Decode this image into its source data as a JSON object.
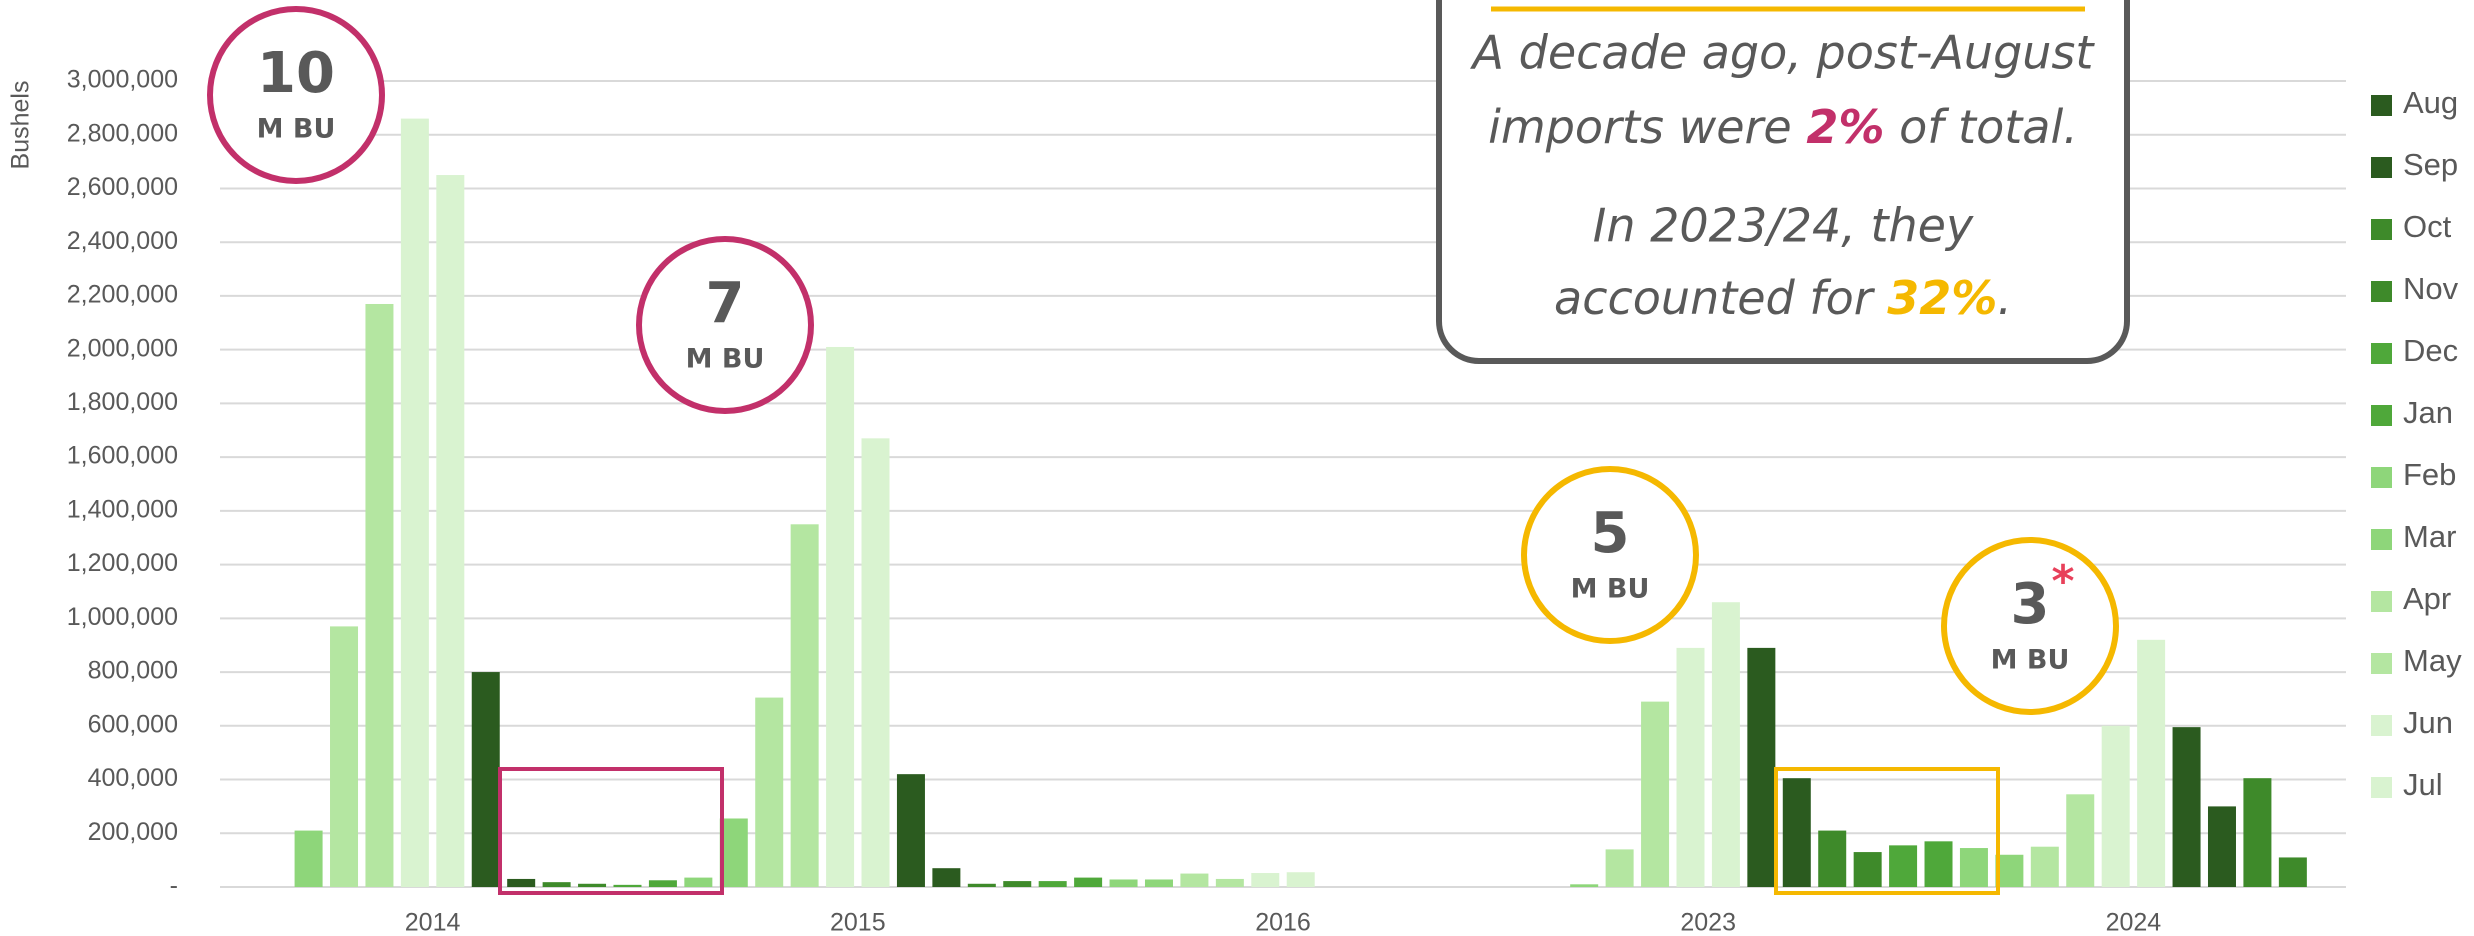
{
  "chart_data": {
    "type": "bar",
    "y_axis_label": "Bushels",
    "categories": [
      "2014",
      "2015",
      "2016",
      "2023",
      "2024"
    ],
    "ylim": [
      0,
      3000000
    ],
    "yticks": [
      {
        "value": 0,
        "label": "-"
      },
      {
        "value": 200000,
        "label": "200,000"
      },
      {
        "value": 400000,
        "label": "400,000"
      },
      {
        "value": 600000,
        "label": "600,000"
      },
      {
        "value": 800000,
        "label": "800,000"
      },
      {
        "value": 1000000,
        "label": "1,000,000"
      },
      {
        "value": 1200000,
        "label": "1,200,000"
      },
      {
        "value": 1400000,
        "label": "1,400,000"
      },
      {
        "value": 1600000,
        "label": "1,600,000"
      },
      {
        "value": 1800000,
        "label": "1,800,000"
      },
      {
        "value": 2000000,
        "label": "2,000,000"
      },
      {
        "value": 2200000,
        "label": "2,200,000"
      },
      {
        "value": 2400000,
        "label": "2,400,000"
      },
      {
        "value": 2600000,
        "label": "2,600,000"
      },
      {
        "value": 2800000,
        "label": "2,800,000"
      },
      {
        "value": 3000000,
        "label": "3,000,000"
      }
    ],
    "grid": true,
    "legend": "right",
    "series": [
      {
        "name": "Aug",
        "color": "#2b5b1f",
        "values": [
          800000,
          420000,
          null,
          890000,
          595000
        ]
      },
      {
        "name": "Sep",
        "color": "#2b5b1f",
        "values": [
          30000,
          70000,
          null,
          405000,
          300000
        ]
      },
      {
        "name": "Oct",
        "color": "#3e8a2a",
        "values": [
          18000,
          12000,
          null,
          210000,
          405000
        ]
      },
      {
        "name": "Nov",
        "color": "#3e8a2a",
        "values": [
          12000,
          22000,
          null,
          130000,
          110000
        ]
      },
      {
        "name": "Dec",
        "color": "#4fa83a",
        "values": [
          8000,
          22000,
          null,
          155000,
          null
        ]
      },
      {
        "name": "Jan",
        "color": "#4fa83a",
        "values": [
          null,
          25000,
          35000,
          null,
          170000
        ]
      },
      {
        "name": "Feb",
        "color": "#8ed67a",
        "values": [
          null,
          35000,
          28000,
          null,
          145000
        ]
      },
      {
        "name": "Mar",
        "color": "#8ed67a",
        "values": [
          210000,
          255000,
          28000,
          10000,
          120000
        ]
      },
      {
        "name": "Apr",
        "color": "#b4e6a1",
        "values": [
          970000,
          705000,
          50000,
          140000,
          150000
        ]
      },
      {
        "name": "May",
        "color": "#b4e6a1",
        "values": [
          2170000,
          1350000,
          30000,
          690000,
          345000
        ]
      },
      {
        "name": "Jun",
        "color": "#d9f3d0",
        "values": [
          2860000,
          2010000,
          52000,
          890000,
          600000
        ]
      },
      {
        "name": "Jul",
        "color": "#d9f3d0",
        "values": [
          2650000,
          1670000,
          55000,
          1060000,
          920000
        ]
      }
    ],
    "circles": [
      {
        "value": 10,
        "unit": "M BU",
        "color": "#c2306a"
      },
      {
        "value": 7,
        "unit": "M BU",
        "color": "#c2306a"
      },
      {
        "value": 5,
        "unit": "M BU",
        "color": "#f5b800"
      },
      {
        "value": 3,
        "unit": "M BU",
        "color": "#f5b800",
        "note": "*"
      }
    ],
    "callout": {
      "line1": "A decade ago, post-August",
      "line2a": "imports were ",
      "highlight1": "2%",
      "line2b": " of total.",
      "line3": "In 2023/24, they",
      "line4a": "accounted for ",
      "highlight2": "32%",
      "line4b": "."
    }
  }
}
